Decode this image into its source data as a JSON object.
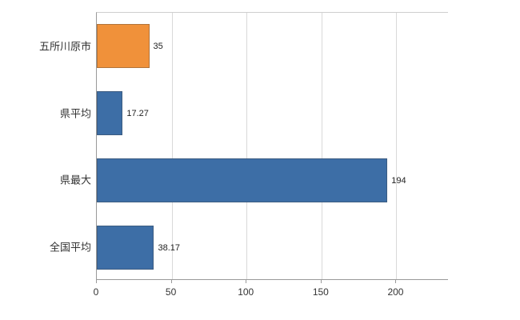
{
  "chart_data": {
    "type": "bar",
    "orientation": "horizontal",
    "title": "",
    "xlabel": "",
    "ylabel": "",
    "categories": [
      "五所川原市",
      "県平均",
      "県最大",
      "全国平均"
    ],
    "values": [
      35,
      17.27,
      194,
      38.17
    ],
    "value_labels": [
      "35",
      "17.27",
      "194",
      "38.17"
    ],
    "bar_colors": [
      "#f0913a",
      "#3d6ea6",
      "#3d6ea6",
      "#3d6ea6"
    ],
    "x_ticks": [
      0,
      50,
      100,
      150,
      200
    ],
    "xlim": [
      0,
      235
    ],
    "grid": true,
    "legend": "none"
  },
  "colors": {
    "grid": "#d9d9d9",
    "axis": "#9a9a9a",
    "text": "#333333"
  }
}
